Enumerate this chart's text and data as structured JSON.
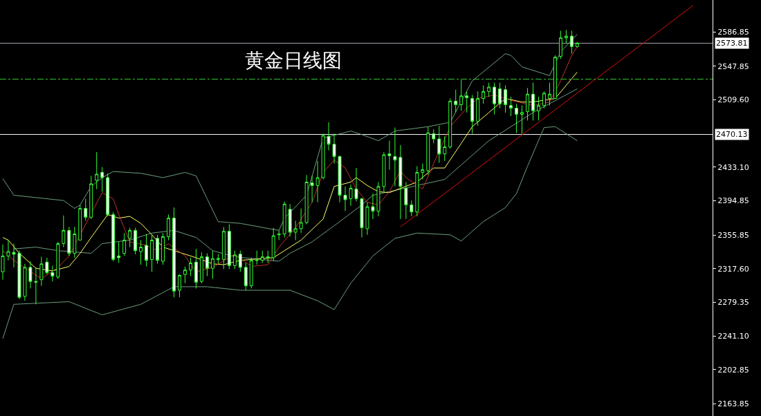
{
  "chart_data": {
    "type": "candlestick",
    "title": "黄金日线图",
    "color": "#33ff33",
    "categories": [
      null,
      null,
      null,
      null,
      null,
      null,
      null,
      null,
      null,
      null,
      null,
      null,
      null,
      null,
      null,
      null,
      null,
      null,
      null,
      null,
      null,
      null,
      null,
      null,
      null,
      null,
      null,
      null,
      null,
      null,
      null,
      null,
      null,
      null,
      null,
      null,
      null,
      null,
      null,
      null,
      null,
      null,
      null,
      null,
      null,
      null,
      null,
      null,
      null,
      null,
      null,
      null,
      null,
      null,
      null,
      null,
      null,
      null,
      null,
      null,
      null,
      null,
      null,
      null,
      null,
      null,
      null,
      null,
      null,
      null,
      null,
      null,
      null,
      null,
      null,
      null,
      null,
      null,
      null,
      null,
      null,
      null,
      null,
      null,
      null,
      null,
      null,
      null,
      null,
      null,
      null,
      null,
      null,
      null,
      null,
      null,
      null,
      null,
      null,
      null,
      null,
      null,
      null,
      null,
      null,
      null,
      null,
      null,
      null,
      null,
      null,
      null,
      null,
      null,
      null,
      null,
      null,
      null,
      null,
      null,
      null,
      null,
      null,
      null,
      null,
      null,
      null,
      null,
      null
    ],
    "ohlc": [
      [
        2314,
        2345,
        2305,
        2332
      ],
      [
        2332,
        2350,
        2327,
        2337
      ],
      [
        2336,
        2346,
        2319,
        2334
      ],
      [
        2335,
        2338,
        2283,
        2285
      ],
      [
        2286,
        2323,
        2281,
        2319
      ],
      [
        2319,
        2326,
        2295,
        2303
      ],
      [
        2303,
        2319,
        2277,
        2302
      ],
      [
        2305,
        2331,
        2298,
        2323
      ],
      [
        2325,
        2330,
        2311,
        2313
      ],
      [
        2313,
        2321,
        2303,
        2309
      ],
      [
        2308,
        2348,
        2306,
        2346
      ],
      [
        2346,
        2378,
        2342,
        2361
      ],
      [
        2361,
        2365,
        2332,
        2335
      ],
      [
        2335,
        2365,
        2330,
        2357
      ],
      [
        2350,
        2390,
        2350,
        2386
      ],
      [
        2386,
        2397,
        2372,
        2376
      ],
      [
        2376,
        2423,
        2374,
        2414
      ],
      [
        2418,
        2450,
        2408,
        2425
      ],
      [
        2427,
        2433,
        2405,
        2421
      ],
      [
        2421,
        2426,
        2377,
        2379
      ],
      [
        2379,
        2382,
        2326,
        2328
      ],
      [
        2332,
        2348,
        2324,
        2330
      ],
      [
        2335,
        2358,
        2332,
        2350
      ],
      [
        2352,
        2364,
        2342,
        2361
      ],
      [
        2361,
        2364,
        2334,
        2338
      ],
      [
        2337,
        2350,
        2322,
        2342
      ],
      [
        2344,
        2357,
        2320,
        2327
      ],
      [
        2328,
        2356,
        2314,
        2350
      ],
      [
        2352,
        2356,
        2323,
        2327
      ],
      [
        2326,
        2358,
        2322,
        2354
      ],
      [
        2354,
        2379,
        2350,
        2375
      ],
      [
        2375,
        2387,
        2285,
        2292
      ],
      [
        2293,
        2311,
        2285,
        2310
      ],
      [
        2311,
        2320,
        2301,
        2316
      ],
      [
        2316,
        2330,
        2309,
        2324
      ],
      [
        2325,
        2340,
        2295,
        2302
      ],
      [
        2303,
        2336,
        2301,
        2331
      ],
      [
        2331,
        2335,
        2309,
        2318
      ],
      [
        2318,
        2338,
        2306,
        2329
      ],
      [
        2328,
        2334,
        2323,
        2329
      ],
      [
        2328,
        2365,
        2317,
        2360
      ],
      [
        2360,
        2368,
        2317,
        2321
      ],
      [
        2321,
        2338,
        2317,
        2333
      ],
      [
        2334,
        2338,
        2314,
        2319
      ],
      [
        2319,
        2324,
        2293,
        2298
      ],
      [
        2298,
        2330,
        2295,
        2327
      ],
      [
        2327,
        2338,
        2322,
        2327
      ],
      [
        2327,
        2338,
        2324,
        2331
      ],
      [
        2331,
        2338,
        2324,
        2330
      ],
      [
        2330,
        2364,
        2326,
        2355
      ],
      [
        2356,
        2361,
        2350,
        2357
      ],
      [
        2357,
        2394,
        2353,
        2391
      ],
      [
        2385,
        2391,
        2354,
        2359
      ],
      [
        2359,
        2372,
        2350,
        2363
      ],
      [
        2363,
        2386,
        2358,
        2370
      ],
      [
        2370,
        2424,
        2368,
        2416
      ],
      [
        2415,
        2423,
        2393,
        2412
      ],
      [
        2412,
        2440,
        2393,
        2421
      ],
      [
        2421,
        2471,
        2419,
        2469
      ],
      [
        2468,
        2484,
        2452,
        2459
      ],
      [
        2459,
        2471,
        2437,
        2445
      ],
      [
        2445,
        2446,
        2393,
        2401
      ],
      [
        2401,
        2411,
        2383,
        2396
      ],
      [
        2397,
        2413,
        2389,
        2409
      ],
      [
        2408,
        2432,
        2394,
        2397
      ],
      [
        2397,
        2398,
        2353,
        2364
      ],
      [
        2363,
        2393,
        2356,
        2388
      ],
      [
        2388,
        2403,
        2374,
        2383
      ],
      [
        2383,
        2416,
        2377,
        2411
      ],
      [
        2411,
        2450,
        2405,
        2447
      ],
      [
        2448,
        2463,
        2430,
        2446
      ],
      [
        2445,
        2478,
        2411,
        2441
      ],
      [
        2444,
        2458,
        2374,
        2411
      ],
      [
        2409,
        2416,
        2374,
        2390
      ],
      [
        2390,
        2395,
        2377,
        2382
      ],
      [
        2382,
        2434,
        2377,
        2427
      ],
      [
        2427,
        2437,
        2419,
        2430
      ],
      [
        2429,
        2479,
        2424,
        2472
      ],
      [
        2471,
        2476,
        2460,
        2465
      ],
      [
        2465,
        2480,
        2438,
        2448
      ],
      [
        2448,
        2468,
        2440,
        2456
      ],
      [
        2456,
        2511,
        2454,
        2508
      ],
      [
        2508,
        2521,
        2495,
        2504
      ],
      [
        2504,
        2532,
        2497,
        2514
      ],
      [
        2514,
        2519,
        2495,
        2512
      ],
      [
        2511,
        2515,
        2471,
        2485
      ],
      [
        2485,
        2519,
        2480,
        2511
      ],
      [
        2511,
        2526,
        2505,
        2519
      ],
      [
        2519,
        2529,
        2513,
        2524
      ],
      [
        2524,
        2529,
        2493,
        2505
      ],
      [
        2522,
        2529,
        2500,
        2505
      ],
      [
        2521,
        2526,
        2495,
        2504
      ],
      [
        2503,
        2513,
        2491,
        2500
      ],
      [
        2500,
        2505,
        2472,
        2493
      ],
      [
        2493,
        2503,
        2471,
        2495
      ],
      [
        2496,
        2523,
        2486,
        2516
      ],
      [
        2516,
        2529,
        2486,
        2497
      ],
      [
        2497,
        2513,
        2486,
        2503
      ],
      [
        2503,
        2519,
        2500,
        2517
      ],
      [
        2511,
        2529,
        2503,
        2516
      ],
      [
        2511,
        2560,
        2511,
        2558
      ],
      [
        2559,
        2588,
        2556,
        2580
      ],
      [
        2580,
        2589,
        2574,
        2582
      ],
      [
        2582,
        2588,
        2562,
        2570
      ],
      [
        2570,
        2575,
        2569,
        2574
      ],
      null,
      null,
      null,
      null,
      null,
      null,
      null,
      null,
      null,
      null,
      null,
      null,
      null,
      null,
      null,
      null,
      null,
      null,
      null,
      null,
      null,
      null,
      null,
      null
    ],
    "series": [
      {
        "type": "line",
        "color": "#6e9e7c",
        "values": [
          2420,
          null,
          2401,
          null,
          null,
          null,
          null,
          null,
          2397,
          null,
          null,
          2395,
          null,
          2386,
          2390,
          null,
          2411,
          null,
          2421,
          null,
          2428,
          null,
          null,
          null,
          null,
          2426,
          null,
          null,
          null,
          2421,
          null,
          null,
          null,
          2427,
          null,
          2423,
          null,
          2397,
          null,
          2371,
          null,
          null,
          null,
          2369,
          null,
          null,
          null,
          null,
          null,
          null,
          2361,
          2375,
          null,
          null,
          null,
          2401,
          null,
          null,
          2466,
          null,
          null,
          null,
          null,
          2474,
          null,
          2470,
          null,
          null,
          2463,
          null,
          null,
          2474,
          null,
          null,
          null,
          null,
          null,
          2479,
          null,
          null,
          null,
          2484,
          null,
          null,
          null,
          2531,
          null,
          null,
          null,
          null,
          null,
          2562,
          2560,
          null,
          2547,
          null,
          null,
          null,
          null,
          2537,
          null,
          2564,
          null,
          null,
          2584,
          null,
          null,
          null,
          null,
          null,
          null,
          null,
          null,
          null,
          null,
          null,
          null,
          null,
          null,
          null,
          null,
          null,
          null,
          null,
          null,
          null,
          null,
          null,
          null
        ]
      },
      {
        "type": "line",
        "color": "#6e9e7c",
        "values": [
          null,
          null,
          2340,
          null,
          null,
          null,
          2342,
          null,
          null,
          null,
          2338,
          null,
          null,
          null,
          null,
          null,
          2335,
          null,
          2346,
          null,
          null,
          null,
          null,
          2350,
          null,
          null,
          null,
          2358,
          null,
          null,
          null,
          2361,
          null,
          null,
          null,
          2353,
          null,
          null,
          2338,
          null,
          null,
          null,
          2331,
          null,
          null,
          null,
          null,
          null,
          null,
          null,
          2326,
          null,
          2335,
          null,
          null,
          null,
          2348,
          null,
          null,
          null,
          null,
          2371,
          null,
          null,
          null,
          2390,
          null,
          2401,
          null,
          null,
          null,
          null,
          null,
          null,
          null,
          null,
          null,
          null,
          null,
          null,
          2419,
          null,
          null,
          null,
          null,
          null,
          null,
          null,
          2463,
          null,
          null,
          null,
          null,
          null,
          null,
          null,
          2495,
          null,
          null,
          null,
          null,
          null,
          null,
          null,
          2522,
          null,
          null,
          null,
          null,
          null,
          null,
          null,
          null,
          null,
          null,
          null,
          null,
          null,
          null,
          null,
          null,
          null,
          null,
          null,
          null,
          null,
          null,
          null,
          null
        ]
      },
      {
        "type": "line",
        "color": "#6e9e7c",
        "values": [
          2238,
          null,
          2277,
          null,
          null,
          null,
          null,
          null,
          null,
          null,
          null,
          null,
          2280,
          null,
          null,
          null,
          null,
          null,
          2265,
          null,
          null,
          null,
          null,
          null,
          null,
          2277,
          null,
          null,
          null,
          null,
          null,
          2297,
          null,
          null,
          null,
          null,
          null,
          2297,
          null,
          null,
          null,
          null,
          null,
          2293,
          null,
          null,
          null,
          null,
          null,
          null,
          null,
          null,
          2293,
          null,
          null,
          null,
          null,
          2281,
          null,
          null,
          2271,
          null,
          null,
          2301,
          null,
          null,
          null,
          2332,
          null,
          null,
          null,
          2352,
          null,
          null,
          null,
          2358,
          null,
          null,
          null,
          null,
          null,
          2356,
          null,
          2349,
          null,
          null,
          null,
          2371,
          null,
          null,
          null,
          2387,
          null,
          2403,
          null,
          2434,
          null,
          null,
          2478,
          null,
          2479,
          null,
          null,
          null,
          2463,
          null,
          null,
          null,
          null,
          null,
          null,
          null,
          null,
          null,
          null,
          null,
          null,
          null,
          null,
          null,
          null,
          null,
          null,
          null,
          null,
          null,
          null,
          null,
          null
        ]
      },
      {
        "type": "line",
        "color": "#ffff66",
        "values": [
          2353,
          2350,
          null,
          2335,
          null,
          null,
          2318,
          null,
          null,
          2315,
          null,
          null,
          2320,
          null,
          2335,
          null,
          2353,
          null,
          null,
          2379,
          null,
          2375,
          null,
          2377,
          null,
          2369,
          null,
          2356,
          null,
          2342,
          null,
          null,
          2336,
          null,
          null,
          2330,
          null,
          null,
          2323,
          null,
          2322,
          null,
          null,
          2327,
          null,
          null,
          null,
          null,
          null,
          2330,
          null,
          2338,
          null,
          null,
          2350,
          null,
          null,
          null,
          2374,
          null,
          2411,
          null,
          null,
          2416,
          2421,
          null,
          2412,
          null,
          2405,
          null,
          2404,
          null,
          null,
          null,
          null,
          2416,
          null,
          null,
          2432,
          null,
          2432,
          null,
          null,
          2460,
          null,
          2479,
          null,
          null,
          2495,
          null,
          null,
          2511,
          null,
          null,
          2507,
          null,
          2507,
          null,
          null,
          null,
          2511,
          null,
          null,
          null,
          2541,
          null,
          null,
          null,
          null,
          null,
          null,
          null,
          null,
          null,
          null,
          null,
          null,
          null,
          null,
          null,
          null,
          null,
          null,
          null,
          null,
          null,
          null,
          null,
          null
        ]
      },
      {
        "type": "line",
        "color": "#c0302a",
        "values": [
          2338,
          null,
          2327,
          null,
          null,
          null,
          null,
          2306,
          null,
          null,
          2319,
          null,
          2332,
          null,
          null,
          null,
          null,
          null,
          2404,
          null,
          2397,
          2379,
          null,
          2348,
          null,
          null,
          2344,
          null,
          2338,
          null,
          2346,
          null,
          null,
          2332,
          null,
          2314,
          null,
          null,
          2319,
          null,
          null,
          null,
          2334,
          null,
          null,
          2320,
          null,
          null,
          2322,
          null,
          2342,
          null,
          null,
          2364,
          null,
          null,
          2393,
          null,
          2427,
          null,
          2441,
          null,
          2432,
          null,
          2408,
          null,
          2393,
          null,
          2390,
          null,
          2405,
          null,
          2429,
          2421,
          null,
          null,
          2408,
          null,
          2437,
          null,
          null,
          2479,
          null,
          null,
          2500,
          null,
          2511,
          null,
          null,
          2515,
          null,
          null,
          2509,
          null,
          null,
          null,
          2503,
          null,
          null,
          2507,
          null,
          2531,
          null,
          2560,
          2570,
          null,
          null,
          null,
          null,
          null,
          null,
          null,
          null,
          null,
          null,
          null,
          null,
          null,
          null,
          null,
          null,
          null,
          null,
          null,
          null,
          null,
          null,
          null,
          null
        ]
      },
      {
        "type": "line",
        "color": "#dd1111",
        "values": [
          null,
          null,
          null,
          null,
          null,
          null,
          null,
          null,
          null,
          null,
          null,
          null,
          null,
          null,
          null,
          null,
          null,
          null,
          null,
          null,
          null,
          null,
          null,
          null,
          null,
          null,
          null,
          null,
          null,
          null,
          null,
          null,
          null,
          null,
          null,
          null,
          null,
          null,
          null,
          null,
          null,
          null,
          null,
          null,
          null,
          null,
          null,
          null,
          null,
          null,
          null,
          null,
          null,
          null,
          null,
          null,
          null,
          null,
          null,
          null,
          null,
          null,
          null,
          null,
          null,
          null,
          null,
          null,
          null,
          null,
          null,
          null,
          2365,
          null,
          null,
          null,
          null,
          null,
          null,
          null,
          null,
          null,
          null,
          null,
          null,
          null,
          null,
          null,
          null,
          null,
          null,
          null,
          null,
          null,
          null,
          null,
          null,
          null,
          null,
          null,
          null,
          null,
          null,
          null,
          null,
          null,
          null,
          null,
          null,
          null,
          null,
          null,
          null,
          null,
          null,
          null,
          null,
          null,
          null,
          null,
          null,
          null,
          null,
          null,
          null,
          2617,
          null,
          null,
          null
        ]
      }
    ],
    "ref_lines": [
      {
        "axis": "y",
        "value": 2573.81,
        "label": "2573.81",
        "color": "#a8a8b8"
      },
      {
        "axis": "y",
        "value": 2470.13,
        "label": "2470.13",
        "color": "#ffffff"
      },
      {
        "axis": "y",
        "value": 2533,
        "color": "#33cc33",
        "line_style": "dashed"
      }
    ],
    "ylim": [
      2150,
      2623
    ],
    "yticks": [
      {
        "value": 2586.85,
        "label": "2586.85"
      },
      {
        "value": 2547.85,
        "label": "2547.85"
      },
      {
        "value": 2509.6,
        "label": "2509.60"
      },
      {
        "value": 2433.1,
        "label": "2433.10"
      },
      {
        "value": 2394.85,
        "label": "2394.85"
      },
      {
        "value": 2355.85,
        "label": "2355.85"
      },
      {
        "value": 2317.6,
        "label": "2317.60"
      },
      {
        "value": 2279.35,
        "label": "2279.35"
      },
      {
        "value": 2241.1,
        "label": "2241.10"
      },
      {
        "value": 2202.85,
        "label": "2202.85"
      },
      {
        "value": 2163.85,
        "label": "2163.85"
      }
    ],
    "tick_labels": "y",
    "grid": false
  }
}
